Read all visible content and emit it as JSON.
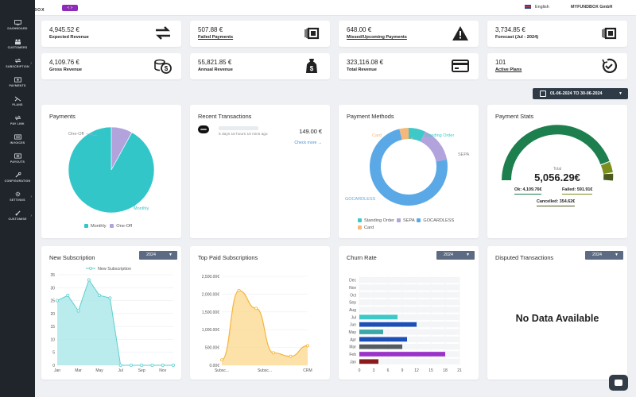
{
  "topbar": {
    "logo_text": "MY FUND BOX",
    "toggle_label": "< >",
    "language": "English",
    "company": "MYFUNDBOX GmbH"
  },
  "sidebar": {
    "items": [
      {
        "label": "DASHBOARD",
        "icon": "monitor-icon"
      },
      {
        "label": "CUSTOMERS",
        "icon": "users-icon"
      },
      {
        "label": "SUBSCRIPTION",
        "icon": "refresh-icon"
      },
      {
        "label": "PAYMENTS",
        "icon": "payments-icon"
      },
      {
        "label": "PLANS",
        "icon": "plans-icon"
      },
      {
        "label": "PAY LINK",
        "icon": "link-icon"
      },
      {
        "label": "INVOICES",
        "icon": "invoice-icon"
      },
      {
        "label": "PAYOUTS",
        "icon": "payouts-icon"
      },
      {
        "label": "CONFIGURATION",
        "icon": "wrench-icon"
      },
      {
        "label": "SETTINGS",
        "icon": "gear-icon"
      },
      {
        "label": "CUSTOMISE",
        "icon": "brush-icon"
      }
    ]
  },
  "stats": [
    {
      "value": "4,945.52 €",
      "label": "Expected Revenue",
      "link": false,
      "icon": "transfer-icon"
    },
    {
      "value": "507.88 €",
      "label": "Failed Payments",
      "link": true,
      "icon": "cash-icon"
    },
    {
      "value": "648.00 €",
      "label": "Missed/Upcoming Payments",
      "link": true,
      "icon": "warning-icon"
    },
    {
      "value": "3,734.85 €",
      "label": "Forecast (Jul - 2024)",
      "link": false,
      "icon": "cash-icon"
    },
    {
      "value": "4,109.76 €",
      "label": "Gross Revenue",
      "link": false,
      "icon": "coins-icon"
    },
    {
      "value": "55,821.85 €",
      "label": "Annual Revenue",
      "link": false,
      "icon": "moneybag-icon"
    },
    {
      "value": "323,116.08 €",
      "label": "Total Revenue",
      "link": false,
      "icon": "credit-card-icon"
    },
    {
      "value": "101",
      "label": "Active Plans",
      "link": true,
      "icon": "clock-check-icon"
    }
  ],
  "date_range": "01-06-2024 TO 30-06-2024",
  "payments": {
    "title": "Payments",
    "legend": [
      "Monthly",
      "One-Off"
    ],
    "colors": [
      "#33c6c9",
      "#b3a3dc"
    ]
  },
  "recent_transactions": {
    "title": "Recent Transactions",
    "time": "5 days 16 hours 10 mins ago",
    "amount": "149.00 €",
    "check_more": "Check more →"
  },
  "payment_methods": {
    "title": "Payment Methods",
    "legend": [
      "Standing Order",
      "SEPA",
      "GOCARDLESS",
      "Card"
    ],
    "colors": [
      "#3ec8c8",
      "#b3a3dc",
      "#5aa9e6",
      "#f6b87a"
    ]
  },
  "payment_stats": {
    "title": "Payment Stats",
    "total_label": "Total",
    "total": "5,056.29€",
    "ok": "Ok: 4,109.76€",
    "failed": "Failed: 591.91€",
    "cancelled": "Cancelled: 354.62€",
    "colors": [
      "#1e7f4e",
      "#7a8f1e",
      "#4b5a1e"
    ]
  },
  "new_subscription": {
    "title": "New Subscription",
    "year": "2024",
    "legend": "New Subscription",
    "color": "#5ccfd1"
  },
  "top_paid": {
    "title": "Top Paid Subscriptions",
    "color": "#f4b43c"
  },
  "churn": {
    "title": "Churn Rate",
    "year": "2024"
  },
  "disputed": {
    "title": "Disputed Transactions",
    "year": "2024",
    "no_data": "No Data Available"
  },
  "chart_data": [
    {
      "type": "pie",
      "categories": [
        "Monthly",
        "One-Off"
      ],
      "values": [
        92,
        8
      ]
    },
    {
      "type": "pie",
      "categories": [
        "Standing Order",
        "SEPA",
        "GOCARDLESS",
        "Card"
      ],
      "values": [
        7,
        15,
        74,
        4
      ]
    },
    {
      "type": "area",
      "categories": [
        "Jan",
        "Feb",
        "Mar",
        "Apr",
        "May",
        "Jun",
        "Jul",
        "Aug",
        "Sep",
        "Oct",
        "Nov",
        "Dec"
      ],
      "x_ticks": [
        "Jan",
        "Mar",
        "May",
        "Jul",
        "Sep",
        "Nov"
      ],
      "series": [
        {
          "name": "New Subscription",
          "values": [
            25,
            27,
            21,
            33,
            27,
            26,
            0,
            0,
            0,
            0,
            0,
            0
          ]
        }
      ],
      "ylim": [
        0,
        35
      ],
      "yticks": [
        0,
        5,
        10,
        15,
        20,
        25,
        30,
        35
      ]
    },
    {
      "type": "area",
      "x_ticks": [
        "Subsc...",
        "Subsc...",
        "CRM"
      ],
      "values": [
        150,
        2100,
        1600,
        350,
        250,
        550
      ],
      "ylim": [
        0,
        2500
      ],
      "yticks": [
        "0.00€",
        "500.00€",
        "1,000.00€",
        "1,500.00€",
        "2,000.00€",
        "2,500.00€"
      ]
    },
    {
      "type": "bar",
      "orientation": "horizontal",
      "categories": [
        "Dec",
        "Nov",
        "Oct",
        "Sep",
        "Aug",
        "Jul",
        "Jun",
        "May",
        "Apr",
        "Mar",
        "Feb",
        "Jan"
      ],
      "values": [
        0,
        0,
        0,
        0,
        0,
        8,
        12,
        5,
        10,
        9,
        18,
        4
      ],
      "colors": [
        "#3ec8c8",
        "#3ec8c8",
        "#3ec8c8",
        "#3ec8c8",
        "#3ec8c8",
        "#3ec8c8",
        "#1e4fb8",
        "#3aa8a8",
        "#1e4fb8",
        "#555b62",
        "#9b33c9",
        "#8b1a1a"
      ],
      "xlim": [
        0,
        21
      ],
      "xticks": [
        0,
        3,
        6,
        9,
        12,
        15,
        18,
        21
      ]
    }
  ]
}
